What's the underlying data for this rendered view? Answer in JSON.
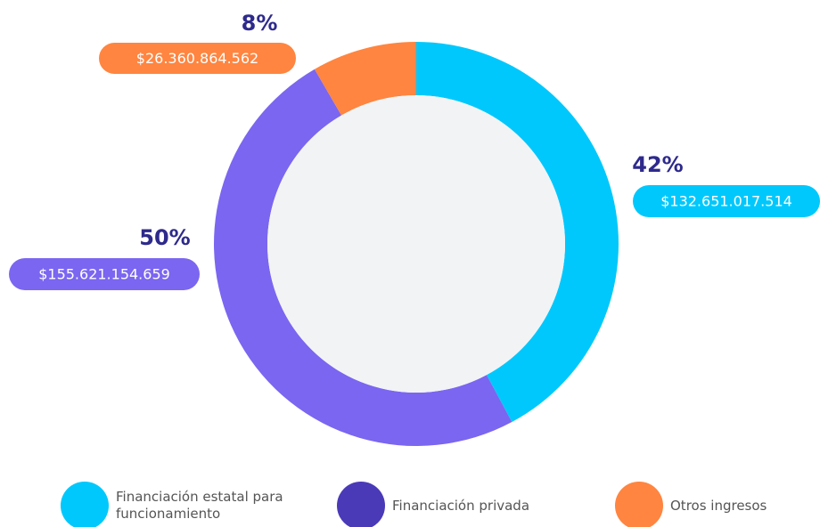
{
  "chart_data": {
    "type": "donut",
    "series": [
      {
        "name": "Financiación estatal para funcionamiento",
        "color": "#00c8fc",
        "legend_color": "#00c8fc"
      },
      {
        "name": "Financiación privada",
        "color": "#7a66f0",
        "legend_color": "#4a3ab8"
      },
      {
        "name": "Otros ingresos",
        "color": "#ff8540",
        "legend_color": "#ff8540"
      }
    ],
    "values": [
      42,
      50,
      8
    ],
    "value_labels": [
      "42%",
      "50%",
      "8%"
    ],
    "amounts": [
      132651017514,
      155621154659,
      26360864562
    ],
    "amount_labels": [
      "$132.651.017.514",
      "$155.621.154.659",
      "$26.360.864.562"
    ]
  }
}
